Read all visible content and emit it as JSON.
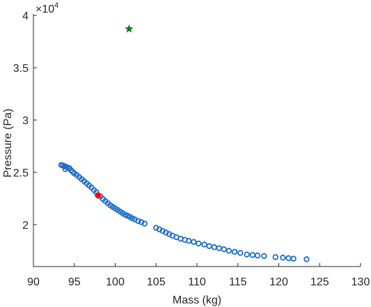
{
  "chart_data": {
    "type": "scatter",
    "xlabel": "Mass (kg)",
    "ylabel": "Pressure (Pa)",
    "y_exponent_label": "×10",
    "y_exponent_power": "4",
    "xlim": [
      90,
      130
    ],
    "ylim": [
      16000,
      40000
    ],
    "x_ticks": [
      90,
      95,
      100,
      105,
      110,
      115,
      120,
      125,
      130
    ],
    "x_tick_labels": [
      "90",
      "95",
      "100",
      "105",
      "110",
      "115",
      "120",
      "125",
      "130"
    ],
    "y_ticks": [
      20000,
      25000,
      30000,
      35000,
      40000
    ],
    "y_tick_labels": [
      "2",
      "2.5",
      "3",
      "3.5",
      "4"
    ],
    "grid": false,
    "series": [
      {
        "marker": "circle-open",
        "color": "#1f6fc5",
        "points": [
          [
            93.4,
            25700
          ],
          [
            93.6,
            25650
          ],
          [
            93.8,
            25600
          ],
          [
            94.0,
            25520
          ],
          [
            94.2,
            25450
          ],
          [
            94.4,
            25400
          ],
          [
            93.9,
            25300
          ],
          [
            94.6,
            25200
          ],
          [
            94.8,
            25050
          ],
          [
            95.0,
            24900
          ],
          [
            95.3,
            24750
          ],
          [
            95.6,
            24550
          ],
          [
            95.9,
            24350
          ],
          [
            96.2,
            24150
          ],
          [
            96.5,
            23950
          ],
          [
            96.8,
            23750
          ],
          [
            97.1,
            23550
          ],
          [
            97.4,
            23300
          ],
          [
            97.7,
            23100
          ],
          [
            98.2,
            22700
          ],
          [
            98.5,
            22450
          ],
          [
            98.8,
            22250
          ],
          [
            99.1,
            22050
          ],
          [
            99.4,
            21850
          ],
          [
            99.7,
            21700
          ],
          [
            100.0,
            21550
          ],
          [
            100.3,
            21400
          ],
          [
            100.6,
            21250
          ],
          [
            100.9,
            21100
          ],
          [
            101.2,
            20950
          ],
          [
            101.5,
            20850
          ],
          [
            101.8,
            20750
          ],
          [
            102.1,
            20600
          ],
          [
            102.4,
            20500
          ],
          [
            102.8,
            20350
          ],
          [
            103.2,
            20250
          ],
          [
            103.6,
            20100
          ],
          [
            105.0,
            19700
          ],
          [
            105.4,
            19550
          ],
          [
            105.8,
            19400
          ],
          [
            106.2,
            19250
          ],
          [
            106.6,
            19100
          ],
          [
            107.0,
            18950
          ],
          [
            107.5,
            18800
          ],
          [
            108.0,
            18650
          ],
          [
            108.5,
            18550
          ],
          [
            109.0,
            18450
          ],
          [
            109.6,
            18350
          ],
          [
            110.2,
            18200
          ],
          [
            110.9,
            18100
          ],
          [
            111.5,
            17950
          ],
          [
            112.1,
            17850
          ],
          [
            112.7,
            17750
          ],
          [
            113.3,
            17650
          ],
          [
            113.9,
            17500
          ],
          [
            114.6,
            17400
          ],
          [
            115.3,
            17300
          ],
          [
            116.1,
            17150
          ],
          [
            116.8,
            17100
          ],
          [
            117.4,
            17050
          ],
          [
            118.2,
            17000
          ],
          [
            119.6,
            16900
          ],
          [
            120.5,
            16850
          ],
          [
            121.2,
            16800
          ],
          [
            121.8,
            16750
          ],
          [
            123.4,
            16700
          ]
        ]
      },
      {
        "marker": "circle-filled",
        "color": "#ff0000",
        "points": [
          [
            97.9,
            22800
          ]
        ]
      },
      {
        "marker": "star",
        "color": "#0a7a1a",
        "points": [
          [
            101.7,
            38700
          ]
        ]
      }
    ]
  }
}
